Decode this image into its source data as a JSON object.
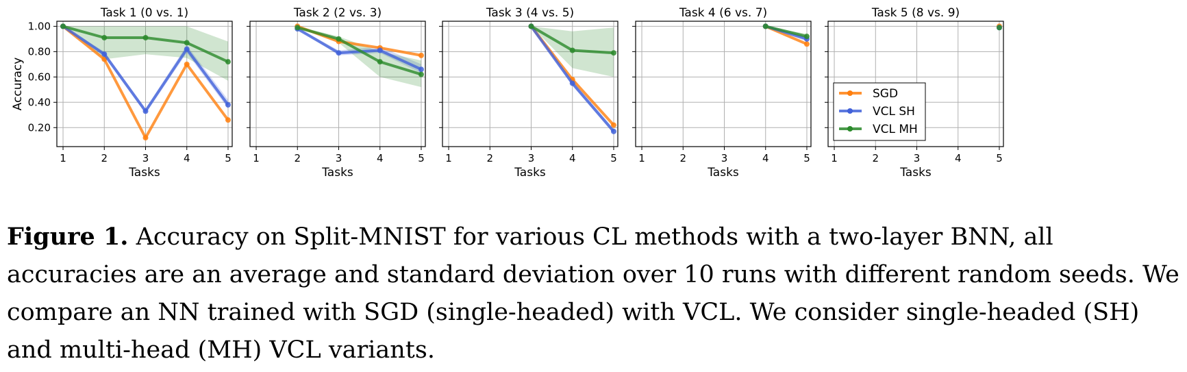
{
  "chart_data": {
    "type": "line",
    "ylabel": "Accuracy",
    "xlabel": "Tasks",
    "x_ticks": [
      1,
      2,
      3,
      4,
      5
    ],
    "y_ticks": [
      "0.20",
      "0.40",
      "0.60",
      "0.80",
      "1.00"
    ],
    "xlim": [
      0.85,
      5.1
    ],
    "ylim": [
      0.05,
      1.04
    ],
    "grid": true,
    "legend": {
      "position": "center-right of last panel",
      "entries": [
        "SGD",
        "VCL SH",
        "VCL MH"
      ]
    },
    "colors": {
      "SGD": "#ff7f0e",
      "VCL SH": "#4161d9",
      "VCL MH": "#2b8a2b"
    },
    "panels": [
      {
        "title": "Task 1 (0 vs. 1)",
        "series": [
          {
            "name": "SGD",
            "x": [
              1,
              2,
              3,
              4,
              5
            ],
            "y": [
              1.0,
              0.74,
              0.12,
              0.7,
              0.26
            ],
            "band": null
          },
          {
            "name": "VCL SH",
            "x": [
              1,
              2,
              3,
              4,
              5
            ],
            "y": [
              1.0,
              0.78,
              0.33,
              0.82,
              0.38
            ],
            "band": {
              "lower": [
                1.0,
                0.76,
                0.31,
                0.79,
                0.35
              ],
              "upper": [
                1.0,
                0.8,
                0.35,
                0.85,
                0.42
              ]
            }
          },
          {
            "name": "VCL MH",
            "x": [
              1,
              2,
              3,
              4,
              5
            ],
            "y": [
              1.0,
              0.91,
              0.91,
              0.87,
              0.72
            ],
            "band": {
              "lower": [
                1.0,
                0.74,
                0.78,
                0.75,
                0.57
              ],
              "upper": [
                1.0,
                1.0,
                1.0,
                1.0,
                0.88
              ]
            }
          }
        ]
      },
      {
        "title": "Task 2 (2 vs. 3)",
        "series": [
          {
            "name": "SGD",
            "x": [
              2,
              3,
              4,
              5
            ],
            "y": [
              1.0,
              0.88,
              0.83,
              0.77
            ],
            "band": null
          },
          {
            "name": "VCL SH",
            "x": [
              2,
              3,
              4,
              5
            ],
            "y": [
              0.98,
              0.79,
              0.81,
              0.66
            ],
            "band": {
              "lower": [
                0.98,
                0.77,
                0.79,
                0.63
              ],
              "upper": [
                0.99,
                0.81,
                0.84,
                0.7
              ]
            }
          },
          {
            "name": "VCL MH",
            "x": [
              2,
              3,
              4,
              5
            ],
            "y": [
              0.99,
              0.9,
              0.72,
              0.62
            ],
            "band": {
              "lower": [
                0.99,
                0.87,
                0.6,
                0.52
              ],
              "upper": [
                1.0,
                0.92,
                0.8,
                0.73
              ]
            }
          }
        ]
      },
      {
        "title": "Task 3 (4 vs. 5)",
        "series": [
          {
            "name": "SGD",
            "x": [
              3,
              4,
              5
            ],
            "y": [
              1.0,
              0.58,
              0.22
            ],
            "band": null
          },
          {
            "name": "VCL SH",
            "x": [
              3,
              4,
              5
            ],
            "y": [
              1.0,
              0.55,
              0.17
            ],
            "band": {
              "lower": [
                1.0,
                0.53,
                0.15
              ],
              "upper": [
                1.0,
                0.57,
                0.19
              ]
            }
          },
          {
            "name": "VCL MH",
            "x": [
              3,
              4,
              5
            ],
            "y": [
              1.0,
              0.81,
              0.79
            ],
            "band": {
              "lower": [
                1.0,
                0.67,
                0.6
              ],
              "upper": [
                1.0,
                0.96,
                0.99
              ]
            }
          }
        ]
      },
      {
        "title": "Task 4 (6 vs. 7)",
        "series": [
          {
            "name": "SGD",
            "x": [
              4,
              5
            ],
            "y": [
              1.0,
              0.86
            ],
            "band": null
          },
          {
            "name": "VCL SH",
            "x": [
              4,
              5
            ],
            "y": [
              1.0,
              0.9
            ],
            "band": {
              "lower": [
                1.0,
                0.88
              ],
              "upper": [
                1.0,
                0.92
              ]
            }
          },
          {
            "name": "VCL MH",
            "x": [
              4,
              5
            ],
            "y": [
              1.0,
              0.92
            ],
            "band": {
              "lower": [
                1.0,
                0.9
              ],
              "upper": [
                1.0,
                0.94
              ]
            }
          }
        ]
      },
      {
        "title": "Task 5 (8 vs. 9)",
        "series": [
          {
            "name": "SGD",
            "x": [
              5
            ],
            "y": [
              1.0
            ],
            "band": null
          },
          {
            "name": "VCL SH",
            "x": [
              5
            ],
            "y": [
              0.99
            ],
            "band": null
          },
          {
            "name": "VCL MH",
            "x": [
              5
            ],
            "y": [
              0.99
            ],
            "band": null
          }
        ]
      }
    ]
  },
  "caption": {
    "label": "Figure 1.",
    "text": "Accuracy on Split-MNIST for various CL methods with a two-layer BNN, all accuracies are an average and standard deviation over 10 runs with different random seeds. We compare an NN trained with SGD (single-headed) with VCL. We consider single-headed (SH) and multi-head (MH) VCL variants."
  }
}
